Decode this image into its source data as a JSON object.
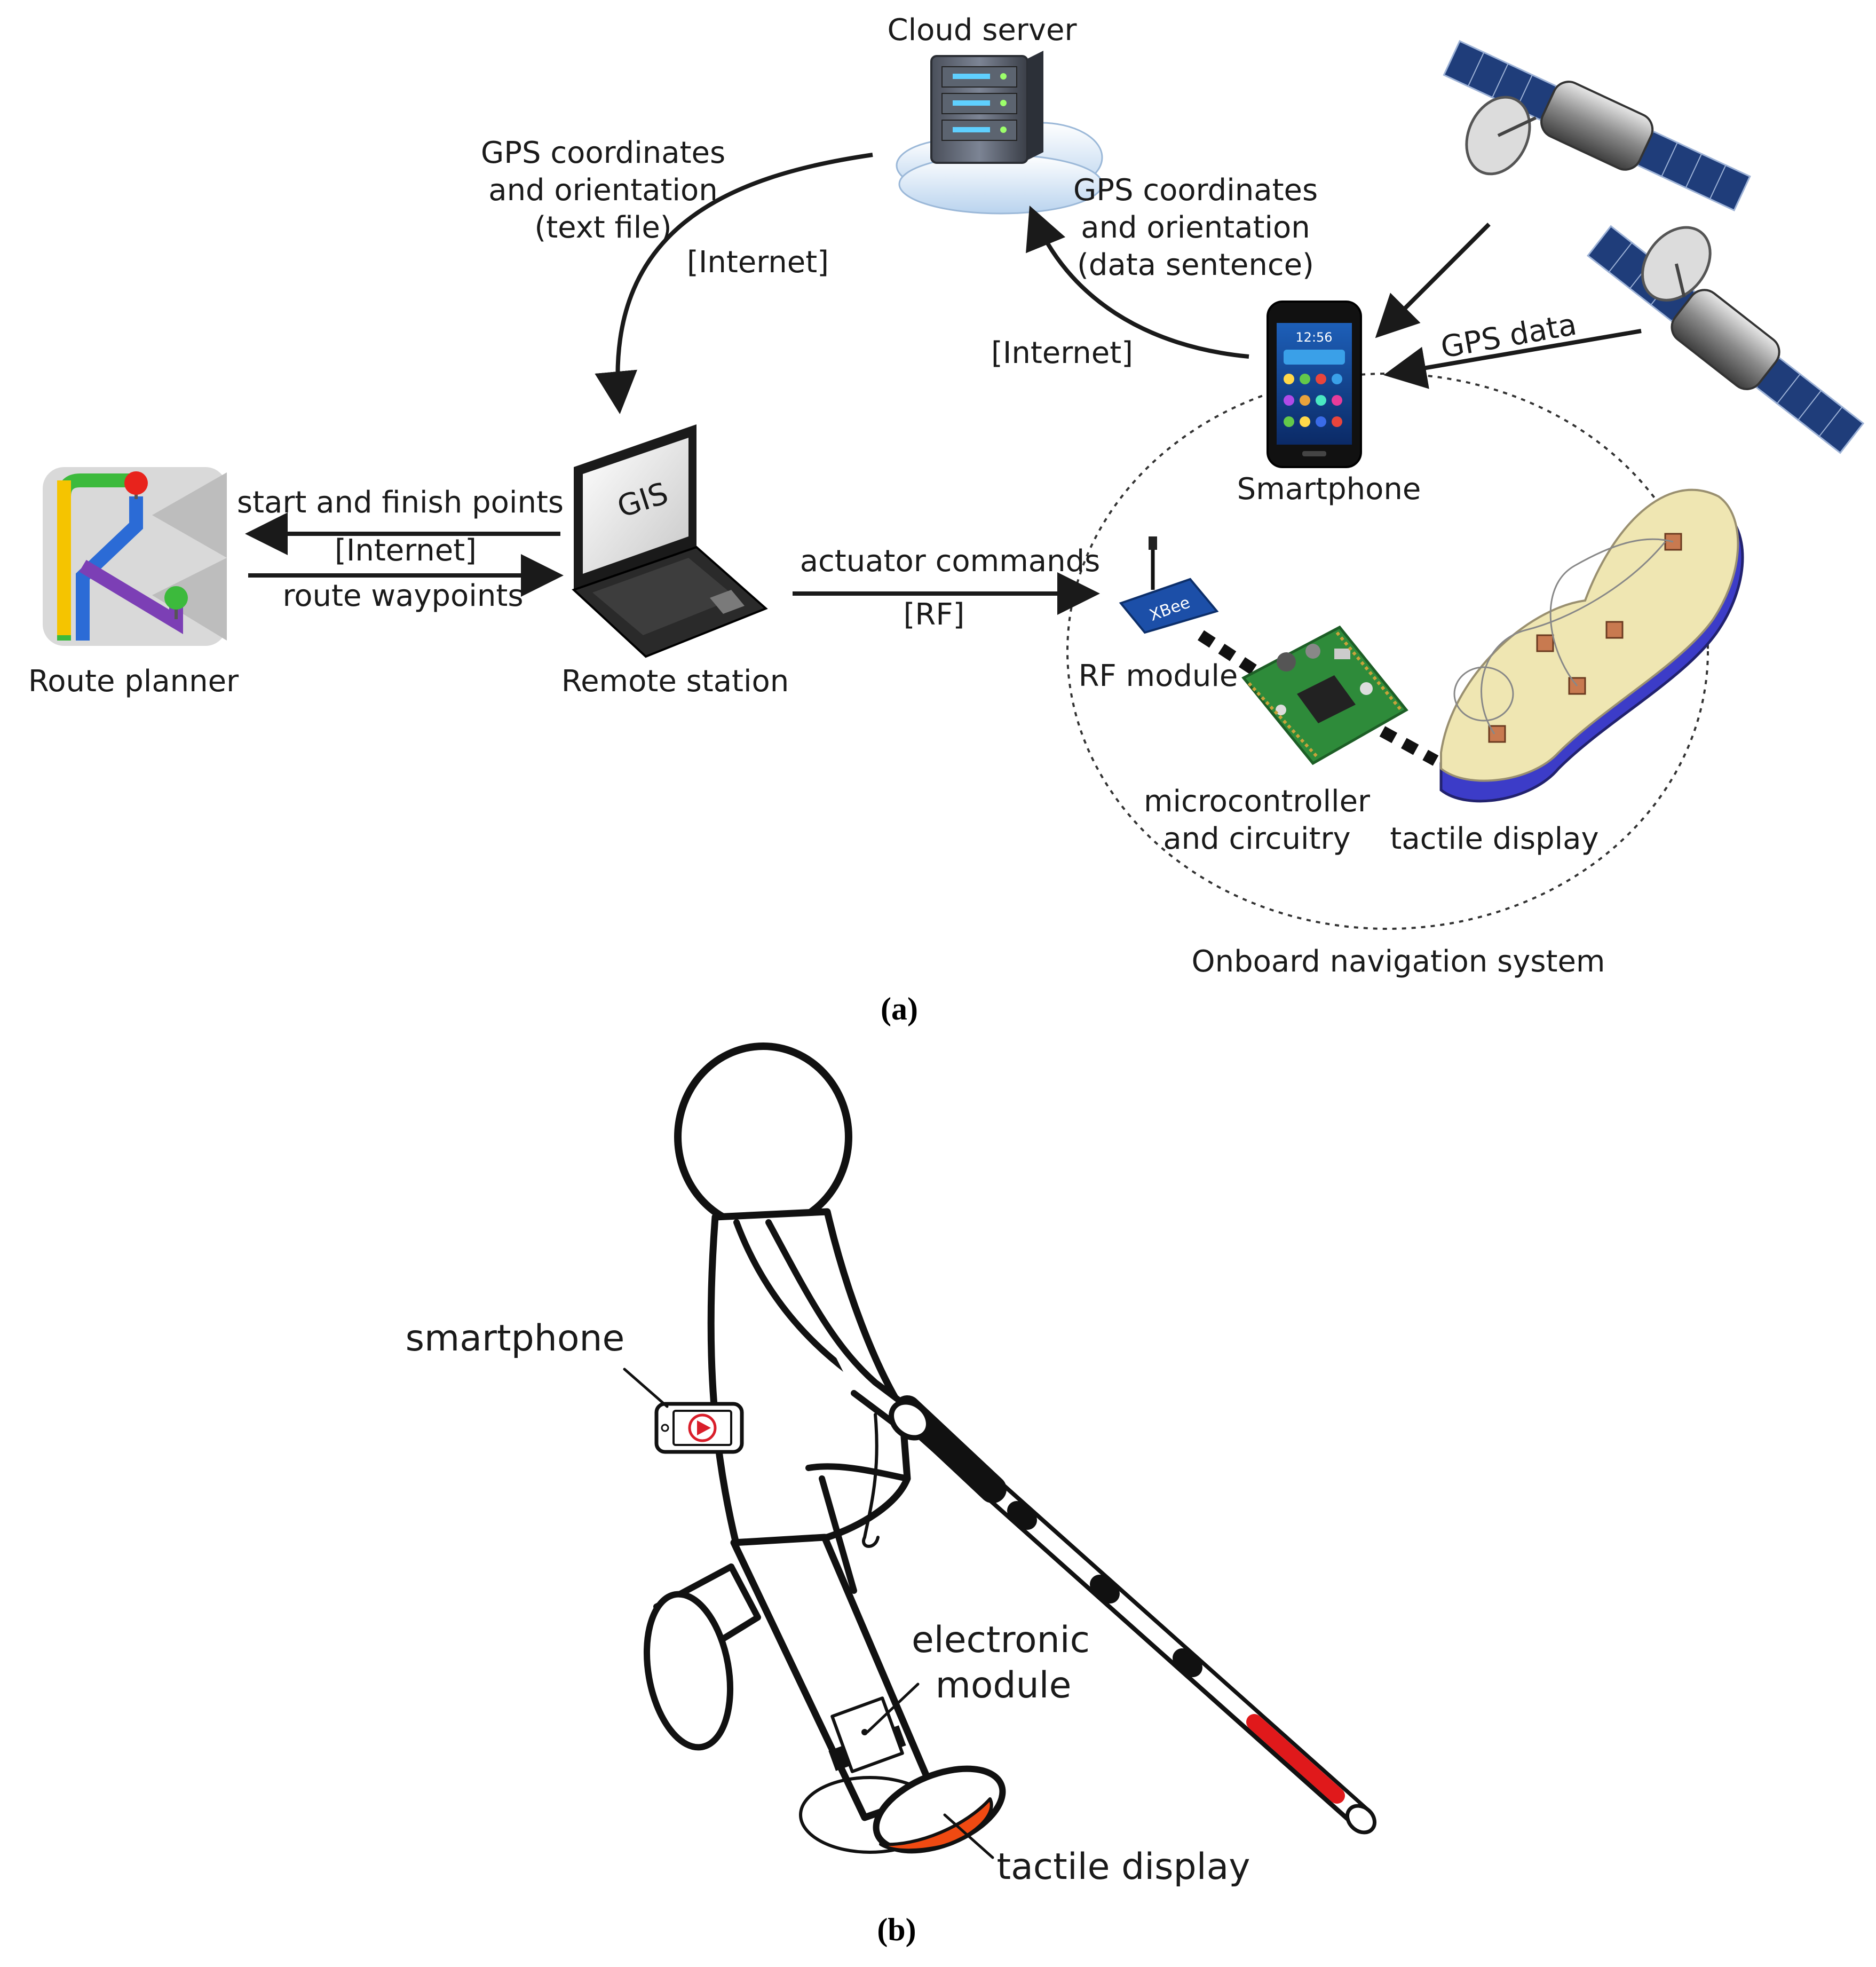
{
  "panel_a": {
    "caption": "(a)",
    "nodes": {
      "cloud_server": "Cloud server",
      "smartphone": "Smartphone",
      "route_planner": "Route planner",
      "remote_station": "Remote station",
      "gis_screen": "GIS",
      "rf_module": "RF module",
      "microcontroller_line1": "microcontroller",
      "microcontroller_line2": "and circuitry",
      "tactile_display": "tactile display",
      "onboard_system": "Onboard navigation system",
      "xbee_chip": "XBee"
    },
    "edges": {
      "cloud_to_station_line1": "GPS coordinates",
      "cloud_to_station_line2": "and orientation",
      "cloud_to_station_line3": "(text file)",
      "cloud_to_station_channel": "[Internet]",
      "phone_to_cloud_line1": "GPS coordinates",
      "phone_to_cloud_line2": "and orientation",
      "phone_to_cloud_line3": "(data sentence)",
      "phone_to_cloud_channel": "[Internet]",
      "satellite_to_phone": "GPS data",
      "station_to_planner": "start and finish points",
      "planner_station_channel": "[Internet]",
      "planner_to_station": "route waypoints",
      "station_to_module": "actuator commands",
      "station_to_module_channel": "[RF]"
    },
    "phone_clock": "12:56"
  },
  "panel_b": {
    "caption": "(b)",
    "labels": {
      "smartphone": "smartphone",
      "electronic_module_line1": "electronic",
      "electronic_module_line2": "module",
      "tactile_display": "tactile display"
    }
  },
  "colors": {
    "ink": "#1a1a1a",
    "cane_red": "#e0191b",
    "tactile_orange": "#f04a12",
    "phone_icon_red": "#d91e2a",
    "route_green": "#3cba3c",
    "route_yellow": "#f5c400",
    "route_blue": "#2b6bd6",
    "route_purple": "#7c3fb5",
    "pcb_green": "#2e8b3a",
    "insole_yellow": "#efe6b2",
    "insole_blue": "#3c3cc8"
  }
}
